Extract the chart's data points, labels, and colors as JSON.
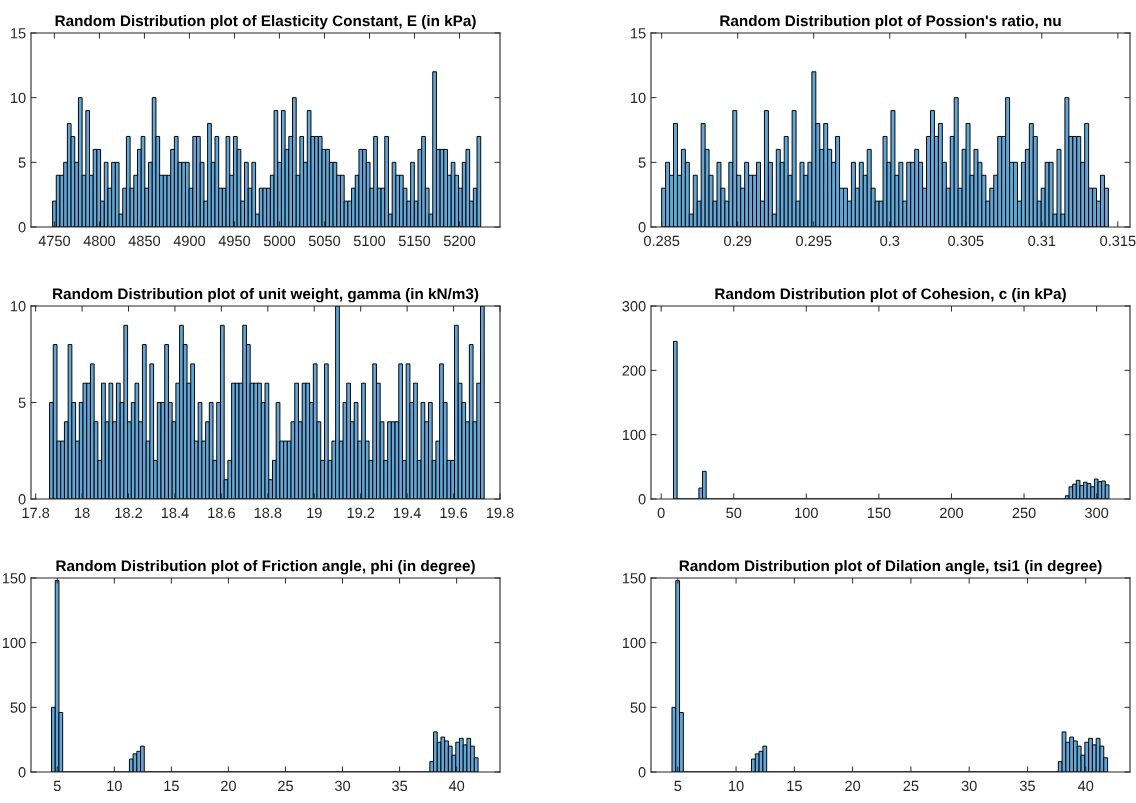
{
  "chart_data": [
    {
      "type": "histogram",
      "title": "Random Distribution plot of Elasticity Constant, E (in kPa)",
      "color": "#62a7d8",
      "bins": [
        4748,
        4752.1,
        4756.2,
        4760.3,
        4764.4,
        4768.5,
        4772.6,
        4776.7,
        4780.8,
        4784.9,
        4789,
        4793.1,
        4797.2,
        4801.3,
        4805.4,
        4809.5,
        4813.6,
        4817.7,
        4821.8,
        4825.9,
        4830,
        4834.1,
        4838.2,
        4842.3,
        4846.4,
        4850.5,
        4854.6,
        4858.7,
        4862.8,
        4866.9,
        4871,
        4875.1,
        4879.2,
        4883.3,
        4887.4,
        4891.5,
        4895.6,
        4899.7,
        4903.8,
        4907.9,
        4912,
        4916.1,
        4920.2,
        4924.3,
        4928.4,
        4932.5,
        4936.6,
        4940.7,
        4944.8,
        4948.9,
        4953,
        4957.1,
        4961.2,
        4965.3,
        4969.4,
        4973.5,
        4977.6,
        4981.7,
        4985.8,
        4989.9,
        4994,
        4998.1,
        5002.2,
        5006.3,
        5010.4,
        5014.5,
        5018.6,
        5022.7,
        5026.8,
        5030.9,
        5035,
        5039.1,
        5043.2,
        5047.3,
        5051.4,
        5055.5,
        5059.6,
        5063.7,
        5067.8,
        5071.9,
        5076,
        5080.1,
        5084.2,
        5088.3,
        5092.4,
        5096.5,
        5100.6,
        5104.7,
        5108.8,
        5112.9,
        5117,
        5121.1,
        5125.2,
        5129.3,
        5133.4,
        5137.5,
        5141.6,
        5145.7,
        5149.8,
        5153.9,
        5158,
        5162.1,
        5166.2,
        5170.3,
        5174.4,
        5178.5,
        5182.6,
        5186.7,
        5190.8,
        5194.9,
        5199,
        5203.1,
        5207.2,
        5211.3,
        5215.4,
        5219.5,
        5223.6
      ],
      "values": [
        2,
        4,
        4,
        5,
        8,
        7,
        5,
        10,
        4,
        9,
        4,
        6,
        6,
        2,
        5,
        3,
        5,
        5,
        1,
        3,
        7,
        3,
        4,
        6,
        7,
        3,
        5,
        10,
        7,
        4,
        4,
        4,
        6,
        7,
        5,
        5,
        5,
        3,
        7,
        7,
        5,
        2,
        8,
        5,
        7,
        3,
        3,
        7,
        4,
        7,
        6,
        2,
        5,
        3,
        5,
        1,
        3,
        3,
        3,
        4,
        9,
        5,
        9,
        6,
        7,
        10,
        4,
        7,
        5,
        9,
        7,
        7,
        7,
        6,
        6,
        5,
        5,
        4,
        4,
        2,
        2,
        3,
        4,
        6,
        6,
        5,
        3,
        7,
        3,
        3,
        7,
        1,
        5,
        4,
        4,
        3,
        2,
        5,
        2,
        6,
        7,
        3,
        1,
        12,
        6,
        6,
        6,
        4,
        5,
        4,
        3,
        5,
        6,
        2,
        3,
        7
      ],
      "xlim": [
        4724,
        5245
      ],
      "xticks": [
        4750,
        4800,
        4850,
        4900,
        4950,
        5000,
        5050,
        5100,
        5150,
        5200
      ],
      "ylim": [
        0,
        15
      ],
      "yticks": [
        0,
        5,
        10,
        15
      ]
    },
    {
      "type": "histogram",
      "title": "Random Distribution plot of Possion's ratio, nu",
      "color": "#62a7d8",
      "bins": [
        0.285,
        0.28526,
        0.28552,
        0.28578,
        0.28604,
        0.2863,
        0.28656,
        0.28682,
        0.28708,
        0.28734,
        0.2876,
        0.28786,
        0.28812,
        0.28838,
        0.28864,
        0.2889,
        0.28916,
        0.28942,
        0.28968,
        0.28994,
        0.2902,
        0.29046,
        0.29072,
        0.29098,
        0.29124,
        0.2915,
        0.29176,
        0.29202,
        0.29228,
        0.29254,
        0.2928,
        0.29306,
        0.29332,
        0.29358,
        0.29384,
        0.2941,
        0.29436,
        0.29462,
        0.29488,
        0.29514,
        0.2954,
        0.29566,
        0.29592,
        0.29618,
        0.29644,
        0.2967,
        0.29696,
        0.29722,
        0.29748,
        0.29774,
        0.298,
        0.29826,
        0.29852,
        0.29878,
        0.29904,
        0.2993,
        0.29956,
        0.29982,
        0.30008,
        0.30034,
        0.3006,
        0.30086,
        0.30112,
        0.30138,
        0.30164,
        0.3019,
        0.30216,
        0.30242,
        0.30268,
        0.30294,
        0.3032,
        0.30346,
        0.30372,
        0.30398,
        0.30424,
        0.3045,
        0.30476,
        0.30502,
        0.30528,
        0.30554,
        0.3058,
        0.30606,
        0.30632,
        0.30658,
        0.30684,
        0.3071,
        0.30736,
        0.30762,
        0.30788,
        0.30814,
        0.3084,
        0.30866,
        0.30892,
        0.30918,
        0.30944,
        0.3097,
        0.30996,
        0.31022,
        0.31048,
        0.31074,
        0.311,
        0.31126,
        0.31152,
        0.31178,
        0.31204,
        0.3123,
        0.31256,
        0.31282,
        0.31308,
        0.31334,
        0.3136,
        0.31386,
        0.31412,
        0.31438
      ],
      "values": [
        3,
        5,
        4,
        8,
        4,
        6,
        5,
        1,
        4,
        2,
        8,
        6,
        4,
        2,
        5,
        3,
        2,
        5,
        9,
        4,
        3,
        5,
        4,
        4,
        5,
        2,
        9,
        5,
        1,
        6,
        5,
        7,
        4,
        9,
        2,
        5,
        4,
        5,
        12,
        8,
        6,
        8,
        6,
        5,
        7,
        3,
        3,
        2,
        5,
        3,
        5,
        4,
        6,
        3,
        2,
        2,
        7,
        5,
        9,
        4,
        5,
        2,
        5,
        5,
        6,
        5,
        3,
        7,
        9,
        7,
        8,
        5,
        3,
        7,
        10,
        3,
        6,
        8,
        4,
        6,
        5,
        4,
        2,
        3,
        4,
        7,
        7,
        10,
        5,
        5,
        2,
        5,
        6,
        8,
        7,
        2,
        3,
        5,
        5,
        1,
        6,
        1,
        10,
        7,
        7,
        7,
        5,
        8,
        3,
        3,
        2,
        4,
        3
      ],
      "xlim": [
        0.2843,
        0.3158
      ],
      "xticks": [
        0.285,
        0.29,
        0.295,
        0.3,
        0.305,
        0.31,
        0.315
      ],
      "ylim": [
        0,
        15
      ],
      "yticks": [
        0,
        5,
        10,
        15
      ]
    },
    {
      "type": "histogram",
      "title": "Random Distribution plot of unit weight, gamma (in kN/m3)",
      "color": "#62a7d8",
      "bins": [
        17.86,
        17.876,
        17.892,
        17.908,
        17.924,
        17.94,
        17.956,
        17.972,
        17.988,
        18.004,
        18.02,
        18.036,
        18.052,
        18.068,
        18.084,
        18.1,
        18.116,
        18.132,
        18.148,
        18.164,
        18.18,
        18.196,
        18.212,
        18.228,
        18.244,
        18.26,
        18.276,
        18.292,
        18.308,
        18.324,
        18.34,
        18.356,
        18.372,
        18.388,
        18.404,
        18.42,
        18.436,
        18.452,
        18.468,
        18.484,
        18.5,
        18.516,
        18.532,
        18.548,
        18.564,
        18.58,
        18.596,
        18.612,
        18.628,
        18.644,
        18.66,
        18.676,
        18.692,
        18.708,
        18.724,
        18.74,
        18.756,
        18.772,
        18.788,
        18.804,
        18.82,
        18.836,
        18.852,
        18.868,
        18.884,
        18.9,
        18.916,
        18.932,
        18.948,
        18.964,
        18.98,
        18.996,
        19.012,
        19.028,
        19.044,
        19.06,
        19.076,
        19.092,
        19.108,
        19.124,
        19.14,
        19.156,
        19.172,
        19.188,
        19.204,
        19.22,
        19.236,
        19.252,
        19.268,
        19.284,
        19.3,
        19.316,
        19.332,
        19.348,
        19.364,
        19.38,
        19.396,
        19.412,
        19.428,
        19.444,
        19.46,
        19.476,
        19.492,
        19.508,
        19.524,
        19.54,
        19.556,
        19.572,
        19.588,
        19.604,
        19.62,
        19.636,
        19.652,
        19.668,
        19.684,
        19.7,
        19.716,
        19.732
      ],
      "values": [
        5,
        8,
        3,
        3,
        4,
        8,
        5,
        3,
        5,
        6,
        6,
        7,
        4,
        2,
        6,
        4,
        6,
        4,
        6,
        5,
        9,
        4,
        5,
        6,
        4,
        8,
        3,
        7,
        2,
        5,
        5,
        8,
        5,
        4,
        6,
        9,
        8,
        6,
        7,
        3,
        5,
        3,
        4,
        5,
        2,
        5,
        9,
        1,
        2,
        6,
        6,
        6,
        9,
        8,
        6,
        6,
        6,
        5,
        6,
        1,
        2,
        5,
        3,
        3,
        3,
        4,
        6,
        4,
        6,
        6,
        5,
        7,
        4,
        2,
        7,
        2,
        3,
        10,
        3,
        5,
        6,
        4,
        5,
        3,
        6,
        3,
        2,
        7,
        6,
        4,
        2,
        4,
        4,
        4,
        7,
        2,
        7,
        5,
        6,
        2,
        5,
        4,
        5,
        2,
        3,
        7,
        5,
        2,
        2,
        9,
        6,
        5,
        4,
        8,
        4,
        6,
        10
      ],
      "xlim": [
        17.78,
        19.8
      ],
      "xticks": [
        17.8,
        18,
        18.2,
        18.4,
        18.6,
        18.8,
        19,
        19.2,
        19.4,
        19.6,
        19.8
      ],
      "ylim": [
        0,
        10
      ],
      "yticks": [
        0,
        5,
        10
      ]
    },
    {
      "type": "histogram",
      "title": "Random Distribution plot of Cohesion, c (in kPa)",
      "color": "#62a7d8",
      "bins": [
        8.5,
        11,
        26,
        28.5,
        31,
        278.5,
        281,
        283.5,
        286,
        288.5,
        291,
        293.5,
        296,
        298.5,
        301,
        303.5,
        306,
        308.5
      ],
      "values": [
        245,
        0,
        17,
        43,
        0,
        5,
        19,
        23,
        29,
        21,
        26,
        24,
        19,
        31,
        27,
        28,
        22
      ],
      "xlim": [
        -7,
        323
      ],
      "xticks": [
        0,
        50,
        100,
        150,
        200,
        250,
        300
      ],
      "ylim": [
        0,
        300
      ],
      "yticks": [
        0,
        100,
        200,
        300
      ]
    },
    {
      "type": "histogram",
      "title": "Random Distribution plot of Friction angle, phi (in degree)",
      "color": "#62a7d8",
      "bins": [
        4.5,
        4.825,
        5.15,
        5.475,
        11.325,
        11.65,
        11.975,
        12.3,
        12.625,
        37.65,
        37.975,
        38.3,
        38.625,
        38.95,
        39.275,
        39.6,
        39.925,
        40.25,
        40.575,
        40.9,
        41.225,
        41.55,
        41.875
      ],
      "values": [
        50,
        148,
        46,
        0,
        10,
        14,
        16,
        20,
        0,
        8,
        31,
        23,
        27,
        24,
        20,
        13,
        23,
        26,
        21,
        26,
        20,
        11
      ],
      "xlim": [
        2.7,
        43.8
      ],
      "xticks": [
        5,
        10,
        15,
        20,
        25,
        30,
        35,
        40
      ],
      "ylim": [
        0,
        150
      ],
      "yticks": [
        0,
        50,
        100,
        150
      ]
    },
    {
      "type": "histogram",
      "title": "Random Distribution plot of Dilation angle, tsi1 (in degree)",
      "color": "#62a7d8",
      "bins": [
        4.5,
        4.825,
        5.15,
        5.475,
        11.325,
        11.65,
        11.975,
        12.3,
        12.625,
        37.65,
        37.975,
        38.3,
        38.625,
        38.95,
        39.275,
        39.6,
        39.925,
        40.25,
        40.575,
        40.9,
        41.225,
        41.55,
        41.875
      ],
      "values": [
        50,
        148,
        46,
        0,
        10,
        14,
        16,
        20,
        0,
        8,
        31,
        23,
        27,
        24,
        20,
        13,
        23,
        26,
        21,
        26,
        20,
        11
      ],
      "xlim": [
        2.7,
        43.8
      ],
      "xticks": [
        5,
        10,
        15,
        20,
        25,
        30,
        35,
        40
      ],
      "ylim": [
        0,
        150
      ],
      "yticks": [
        0,
        50,
        100,
        150
      ]
    }
  ]
}
